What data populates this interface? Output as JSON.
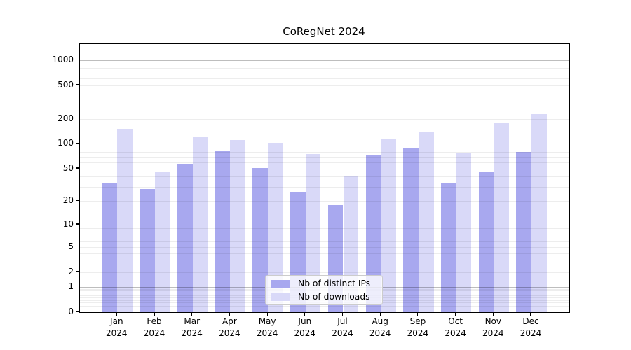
{
  "title": "CoRegNet 2024",
  "chart_data": {
    "type": "bar",
    "title": "CoRegNet 2024",
    "categories": [
      "Jan 2024",
      "Feb 2024",
      "Mar 2024",
      "Apr 2024",
      "May 2024",
      "Jun 2024",
      "Jul 2024",
      "Aug 2024",
      "Sep 2024",
      "Oct 2024",
      "Nov 2024",
      "Dec 2024"
    ],
    "series": [
      {
        "name": "Nb of distinct IPs",
        "color": "#a8a8ef",
        "values": [
          33,
          28,
          57,
          82,
          51,
          26,
          18,
          74,
          90,
          33,
          46,
          80
        ]
      },
      {
        "name": "Nb of downloads",
        "color": "#d9d9f8",
        "values": [
          150,
          45,
          120,
          112,
          102,
          76,
          40,
          113,
          140,
          78,
          180,
          225
        ]
      }
    ],
    "xlabel": "",
    "ylabel": "",
    "yscale": "log1p",
    "yticks": [
      0,
      1,
      2,
      5,
      10,
      20,
      50,
      100,
      200,
      500,
      1000
    ],
    "ylim": [
      0,
      1230
    ],
    "grid": "both",
    "legend_position": "lower center"
  }
}
